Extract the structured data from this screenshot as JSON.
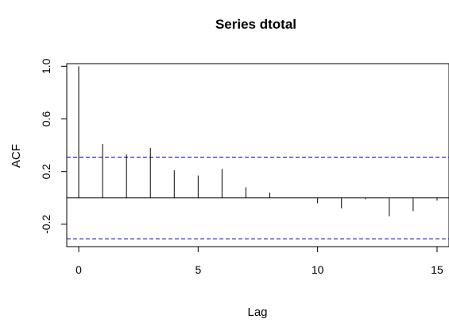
{
  "chart_data": {
    "type": "bar",
    "title": "Series  dtotal",
    "xlabel": "Lag",
    "ylabel": "ACF",
    "x": [
      0,
      1,
      2,
      3,
      4,
      5,
      6,
      7,
      8,
      9,
      10,
      11,
      12,
      13,
      14,
      15
    ],
    "values": [
      1.0,
      0.41,
      0.33,
      0.38,
      0.21,
      0.17,
      0.22,
      0.08,
      0.04,
      0.0,
      -0.04,
      -0.08,
      -0.01,
      -0.14,
      -0.1,
      -0.02
    ],
    "confidence_bound": 0.31,
    "xlim": [
      -0.5,
      15.5
    ],
    "ylim": [
      -0.37,
      1.02
    ],
    "x_ticks": [
      0,
      5,
      10,
      15
    ],
    "y_ticks": [
      -0.2,
      0.2,
      0.6,
      1.0
    ],
    "y_tick_labels": [
      "-0.2",
      "0.2",
      "0.6",
      "1.0"
    ],
    "grid": false,
    "colors": {
      "bars": "#000000",
      "confidence": "#0000cc",
      "frame": "#000000"
    }
  }
}
